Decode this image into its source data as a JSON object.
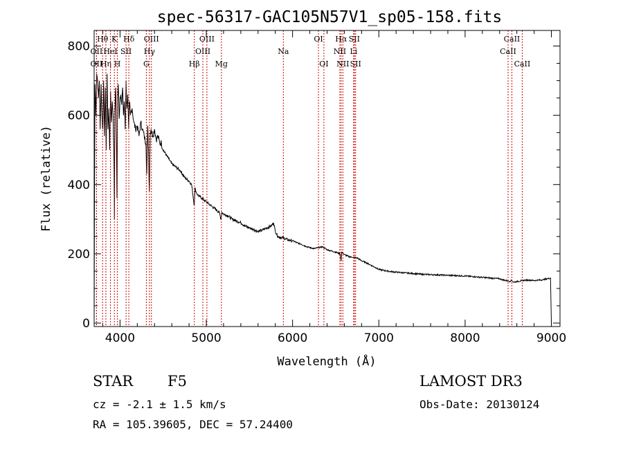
{
  "chart_data": {
    "type": "line",
    "title": "spec-56317-GAC105N57V1_sp05-158.fits",
    "xlabel": "Wavelength (Å)",
    "ylabel": "Flux (relative)",
    "xlim": [
      3700,
      9100
    ],
    "ylim": [
      -10,
      845
    ],
    "xticks": [
      4000,
      5000,
      6000,
      7000,
      8000,
      9000
    ],
    "yticks": [
      0,
      200,
      400,
      600,
      800
    ],
    "series": [
      {
        "name": "spectrum",
        "x": [
          3700,
          3705,
          3710,
          3720,
          3730,
          3740,
          3750,
          3760,
          3770,
          3780,
          3790,
          3800,
          3810,
          3820,
          3830,
          3840,
          3850,
          3860,
          3870,
          3880,
          3890,
          3900,
          3910,
          3920,
          3930,
          3935,
          3940,
          3950,
          3960,
          3965,
          3970,
          3980,
          3990,
          4000,
          4010,
          4020,
          4030,
          4040,
          4050,
          4060,
          4070,
          4080,
          4090,
          4100,
          4110,
          4120,
          4140,
          4160,
          4180,
          4200,
          4220,
          4240,
          4260,
          4280,
          4300,
          4310,
          4320,
          4330,
          4340,
          4350,
          4360,
          4380,
          4400,
          4420,
          4440,
          4460,
          4480,
          4500,
          4550,
          4600,
          4650,
          4700,
          4750,
          4800,
          4830,
          4860,
          4870,
          4880,
          4900,
          4950,
          5000,
          5050,
          5100,
          5150,
          5170,
          5180,
          5200,
          5250,
          5300,
          5350,
          5400,
          5450,
          5500,
          5550,
          5600,
          5650,
          5700,
          5750,
          5780,
          5800,
          5830,
          5850,
          5900,
          5950,
          6000,
          6050,
          6100,
          6150,
          6200,
          6250,
          6300,
          6350,
          6400,
          6450,
          6500,
          6550,
          6563,
          6570,
          6600,
          6650,
          6700,
          6750,
          6800,
          6850,
          6900,
          6950,
          7000,
          7100,
          7200,
          7300,
          7400,
          7500,
          7600,
          7700,
          7800,
          7900,
          8000,
          8100,
          8200,
          8300,
          8400,
          8450,
          8500,
          8520,
          8540,
          8560,
          8600,
          8650,
          8700,
          8750,
          8800,
          8850,
          8900,
          8950,
          8990,
          9000,
          9005
        ],
        "y": [
          0,
          420,
          690,
          600,
          720,
          700,
          650,
          700,
          560,
          690,
          600,
          560,
          700,
          540,
          680,
          500,
          720,
          560,
          620,
          500,
          670,
          580,
          640,
          600,
          460,
          300,
          610,
          680,
          500,
          360,
          640,
          690,
          590,
          650,
          660,
          630,
          680,
          600,
          640,
          560,
          700,
          620,
          660,
          560,
          640,
          600,
          620,
          580,
          560,
          570,
          540,
          580,
          560,
          540,
          520,
          430,
          570,
          500,
          380,
          550,
          560,
          540,
          560,
          530,
          540,
          520,
          520,
          500,
          480,
          460,
          450,
          440,
          420,
          410,
          400,
          340,
          390,
          380,
          370,
          360,
          350,
          340,
          330,
          320,
          300,
          320,
          315,
          310,
          300,
          295,
          290,
          280,
          275,
          270,
          265,
          268,
          275,
          280,
          290,
          265,
          250,
          248,
          245,
          240,
          238,
          232,
          228,
          222,
          218,
          215,
          218,
          220,
          212,
          208,
          205,
          200,
          180,
          205,
          198,
          192,
          190,
          188,
          180,
          175,
          168,
          162,
          155,
          150,
          147,
          145,
          143,
          141,
          140,
          139,
          138,
          137,
          136,
          134,
          132,
          130,
          128,
          124,
          122,
          120,
          124,
          118,
          120,
          122,
          124,
          124,
          123,
          124,
          125,
          128,
          130,
          0,
          0
        ]
      }
    ],
    "spectral_lines": [
      {
        "name": "Hθ",
        "wave": 3798,
        "row": 1
      },
      {
        "name": "OII",
        "wave": 3727,
        "row": 2
      },
      {
        "name": "OII",
        "wave": 3727,
        "row": 3
      },
      {
        "name": "Hη",
        "wave": 3836,
        "row": 3
      },
      {
        "name": "HeI",
        "wave": 3889,
        "row": 2
      },
      {
        "name": "K",
        "wave": 3934,
        "row": 1
      },
      {
        "name": "H",
        "wave": 3969,
        "row": 3
      },
      {
        "name": "SII",
        "wave": 4070,
        "row": 2
      },
      {
        "name": "Hδ",
        "wave": 4102,
        "row": 1
      },
      {
        "name": "OIII",
        "wave": 4364,
        "row": 1
      },
      {
        "name": "Hγ",
        "wave": 4341,
        "row": 2
      },
      {
        "name": "G",
        "wave": 4305,
        "row": 3
      },
      {
        "name": "Hβ",
        "wave": 4861,
        "row": 3
      },
      {
        "name": "OIII",
        "wave": 5007,
        "row": 1
      },
      {
        "name": "OIII",
        "wave": 4960,
        "row": 2
      },
      {
        "name": "Mg",
        "wave": 5175,
        "row": 3
      },
      {
        "name": "Na",
        "wave": 5893,
        "row": 2
      },
      {
        "name": "OI",
        "wave": 6300,
        "row": 1
      },
      {
        "name": "OI",
        "wave": 6363,
        "row": 3
      },
      {
        "name": "Hα",
        "wave": 6563,
        "row": 1
      },
      {
        "name": "SII",
        "wave": 6716,
        "row": 1
      },
      {
        "name": "NII",
        "wave": 6548,
        "row": 2
      },
      {
        "name": "Li",
        "wave": 6708,
        "row": 2
      },
      {
        "name": "NII",
        "wave": 6583,
        "row": 3
      },
      {
        "name": "SII",
        "wave": 6731,
        "row": 3
      },
      {
        "name": "CaII",
        "wave": 8542,
        "row": 1
      },
      {
        "name": "CaII",
        "wave": 8498,
        "row": 2
      },
      {
        "name": "CaII",
        "wave": 8662,
        "row": 3
      }
    ]
  },
  "info": {
    "class": "STAR",
    "subclass": "F5",
    "cz": "cz = -2.1 ± 1.5 km/s",
    "coords": "RA = 105.39605, DEC =  57.24400",
    "survey": "LAMOST DR3",
    "obs_date": "Obs-Date: 20130124"
  },
  "colors": {
    "spectrum": "#000000",
    "line_marker": "#cc0000"
  }
}
